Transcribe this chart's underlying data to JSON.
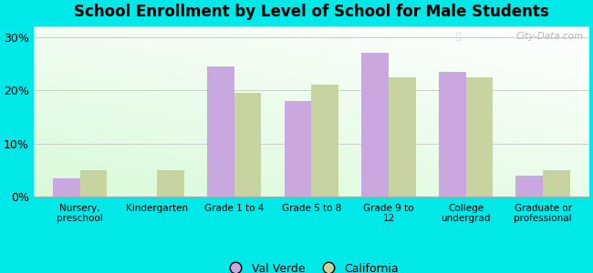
{
  "title": "School Enrollment by Level of School for Male Students",
  "categories": [
    "Nursery,\npreschool",
    "Kindergarten",
    "Grade 1 to 4",
    "Grade 5 to 8",
    "Grade 9 to\n12",
    "College\nundergrad",
    "Graduate or\nprofessional"
  ],
  "val_verde": [
    3.5,
    0.0,
    24.5,
    18.0,
    27.0,
    23.5,
    4.0
  ],
  "california": [
    5.0,
    5.0,
    19.5,
    21.0,
    22.5,
    22.5,
    5.0
  ],
  "bar_color_vv": "#c9a8e0",
  "bar_color_ca": "#c8d4a0",
  "background_color": "#00e8e8",
  "ylabel_ticks": [
    "0%",
    "10%",
    "20%",
    "30%"
  ],
  "ytick_vals": [
    0,
    10,
    20,
    30
  ],
  "ylim": [
    0,
    32
  ],
  "legend_labels": [
    "Val Verde",
    "California"
  ],
  "watermark": "City-Data.com"
}
